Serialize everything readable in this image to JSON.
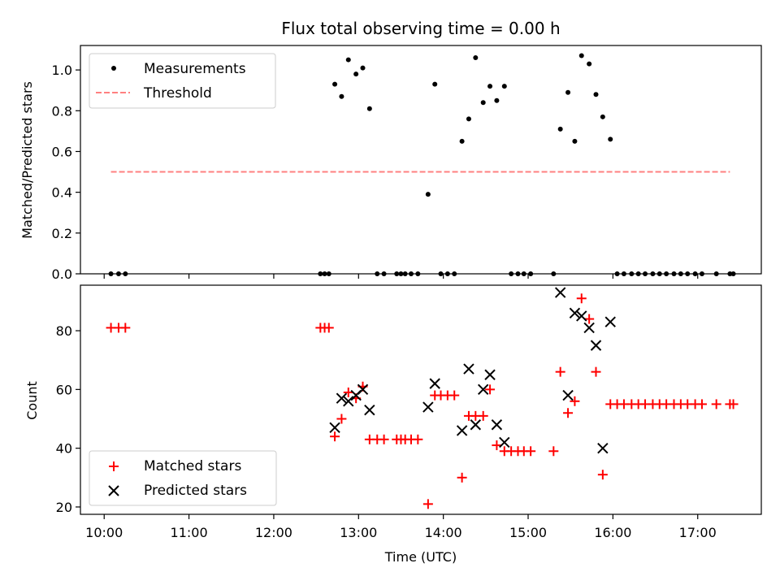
{
  "chart_data": [
    {
      "type": "scatter",
      "title": "Flux total observing time = 0.00 h",
      "xlabel": "",
      "ylabel": "Matched/Predicted stars",
      "xlim": [
        9.72,
        17.75
      ],
      "ylim": [
        0,
        1.12
      ],
      "yticks": [
        0.0,
        0.2,
        0.4,
        0.6,
        0.8,
        1.0
      ],
      "ytick_labels": [
        "0.0",
        "0.2",
        "0.4",
        "0.6",
        "0.8",
        "1.0"
      ],
      "legend": [
        "Measurements",
        "Threshold"
      ],
      "legend_position": "upper-left",
      "series": [
        {
          "name": "Measurements",
          "marker": "dot",
          "color": "#000000",
          "points": [
            [
              10.08,
              0
            ],
            [
              10.17,
              0
            ],
            [
              10.25,
              0
            ],
            [
              12.55,
              0
            ],
            [
              12.6,
              0
            ],
            [
              12.65,
              0
            ],
            [
              12.72,
              0.93
            ],
            [
              12.8,
              0.87
            ],
            [
              12.88,
              1.05
            ],
            [
              12.97,
              0.98
            ],
            [
              13.05,
              1.01
            ],
            [
              13.13,
              0.81
            ],
            [
              13.22,
              0
            ],
            [
              13.3,
              0
            ],
            [
              13.45,
              0
            ],
            [
              13.5,
              0
            ],
            [
              13.55,
              0
            ],
            [
              13.62,
              0
            ],
            [
              13.7,
              0
            ],
            [
              13.82,
              0.39
            ],
            [
              13.9,
              0.93
            ],
            [
              13.97,
              0
            ],
            [
              14.05,
              0
            ],
            [
              14.13,
              0
            ],
            [
              14.22,
              0.65
            ],
            [
              14.3,
              0.76
            ],
            [
              14.38,
              1.06
            ],
            [
              14.47,
              0.84
            ],
            [
              14.55,
              0.92
            ],
            [
              14.63,
              0.85
            ],
            [
              14.72,
              0.92
            ],
            [
              14.8,
              0
            ],
            [
              14.88,
              0
            ],
            [
              14.95,
              0
            ],
            [
              15.03,
              0
            ],
            [
              15.3,
              0
            ],
            [
              15.38,
              0.71
            ],
            [
              15.47,
              0.89
            ],
            [
              15.55,
              0.65
            ],
            [
              15.63,
              1.07
            ],
            [
              15.72,
              1.03
            ],
            [
              15.8,
              0.88
            ],
            [
              15.88,
              0.77
            ],
            [
              15.97,
              0.66
            ],
            [
              16.05,
              0
            ],
            [
              16.13,
              0
            ],
            [
              16.22,
              0
            ],
            [
              16.3,
              0
            ],
            [
              16.38,
              0
            ],
            [
              16.47,
              0
            ],
            [
              16.55,
              0
            ],
            [
              16.63,
              0
            ],
            [
              16.72,
              0
            ],
            [
              16.8,
              0
            ],
            [
              16.88,
              0
            ],
            [
              16.97,
              0
            ],
            [
              17.05,
              0
            ],
            [
              17.22,
              0
            ],
            [
              17.38,
              0
            ],
            [
              17.42,
              0
            ]
          ]
        },
        {
          "name": "Threshold",
          "style": "dashed",
          "color": "#ff8080",
          "points": [
            [
              10.08,
              0.5
            ],
            [
              17.38,
              0.5
            ]
          ]
        }
      ]
    },
    {
      "type": "scatter",
      "title": "",
      "xlabel": "Time (UTC)",
      "ylabel": "Count",
      "xlim": [
        9.72,
        17.75
      ],
      "ylim": [
        17.5,
        95.5
      ],
      "yticks": [
        20,
        40,
        60,
        80
      ],
      "ytick_labels": [
        "20",
        "40",
        "60",
        "80"
      ],
      "xticks": [
        10,
        11,
        12,
        13,
        14,
        15,
        16,
        17
      ],
      "xtick_labels": [
        "10:00",
        "11:00",
        "12:00",
        "13:00",
        "14:00",
        "15:00",
        "16:00",
        "17:00"
      ],
      "legend": [
        "Matched stars",
        "Predicted stars"
      ],
      "legend_position": "lower-left",
      "series": [
        {
          "name": "Matched stars",
          "marker": "plus",
          "color": "#ff0000",
          "points": [
            [
              10.08,
              81
            ],
            [
              10.17,
              81
            ],
            [
              10.25,
              81
            ],
            [
              12.55,
              81
            ],
            [
              12.6,
              81
            ],
            [
              12.65,
              81
            ],
            [
              12.72,
              44
            ],
            [
              12.8,
              50
            ],
            [
              12.88,
              59
            ],
            [
              12.97,
              57
            ],
            [
              13.05,
              61
            ],
            [
              13.13,
              43
            ],
            [
              13.22,
              43
            ],
            [
              13.3,
              43
            ],
            [
              13.45,
              43
            ],
            [
              13.5,
              43
            ],
            [
              13.55,
              43
            ],
            [
              13.62,
              43
            ],
            [
              13.7,
              43
            ],
            [
              13.82,
              21
            ],
            [
              13.9,
              58
            ],
            [
              13.97,
              58
            ],
            [
              14.05,
              58
            ],
            [
              14.13,
              58
            ],
            [
              14.22,
              30
            ],
            [
              14.3,
              51
            ],
            [
              14.38,
              51
            ],
            [
              14.47,
              51
            ],
            [
              14.55,
              60
            ],
            [
              14.63,
              41
            ],
            [
              14.72,
              39
            ],
            [
              14.8,
              39
            ],
            [
              14.88,
              39
            ],
            [
              14.95,
              39
            ],
            [
              15.03,
              39
            ],
            [
              15.3,
              39
            ],
            [
              15.38,
              66
            ],
            [
              15.47,
              52
            ],
            [
              15.55,
              56
            ],
            [
              15.63,
              91
            ],
            [
              15.72,
              84
            ],
            [
              15.8,
              66
            ],
            [
              15.88,
              31
            ],
            [
              15.97,
              55
            ],
            [
              16.05,
              55
            ],
            [
              16.13,
              55
            ],
            [
              16.22,
              55
            ],
            [
              16.3,
              55
            ],
            [
              16.38,
              55
            ],
            [
              16.47,
              55
            ],
            [
              16.55,
              55
            ],
            [
              16.63,
              55
            ],
            [
              16.72,
              55
            ],
            [
              16.8,
              55
            ],
            [
              16.88,
              55
            ],
            [
              16.97,
              55
            ],
            [
              17.05,
              55
            ],
            [
              17.22,
              55
            ],
            [
              17.38,
              55
            ],
            [
              17.42,
              55
            ]
          ]
        },
        {
          "name": "Predicted stars",
          "marker": "x",
          "color": "#000000",
          "points": [
            [
              12.72,
              47
            ],
            [
              12.8,
              57
            ],
            [
              12.88,
              56
            ],
            [
              12.97,
              58
            ],
            [
              13.05,
              60
            ],
            [
              13.13,
              53
            ],
            [
              13.82,
              54
            ],
            [
              13.9,
              62
            ],
            [
              14.22,
              46
            ],
            [
              14.3,
              67
            ],
            [
              14.38,
              48
            ],
            [
              14.47,
              60
            ],
            [
              14.55,
              65
            ],
            [
              14.63,
              48
            ],
            [
              14.72,
              42
            ],
            [
              15.38,
              93
            ],
            [
              15.47,
              58
            ],
            [
              15.55,
              86
            ],
            [
              15.63,
              85
            ],
            [
              15.72,
              81
            ],
            [
              15.8,
              75
            ],
            [
              15.88,
              40
            ],
            [
              15.97,
              83
            ]
          ]
        }
      ]
    }
  ]
}
